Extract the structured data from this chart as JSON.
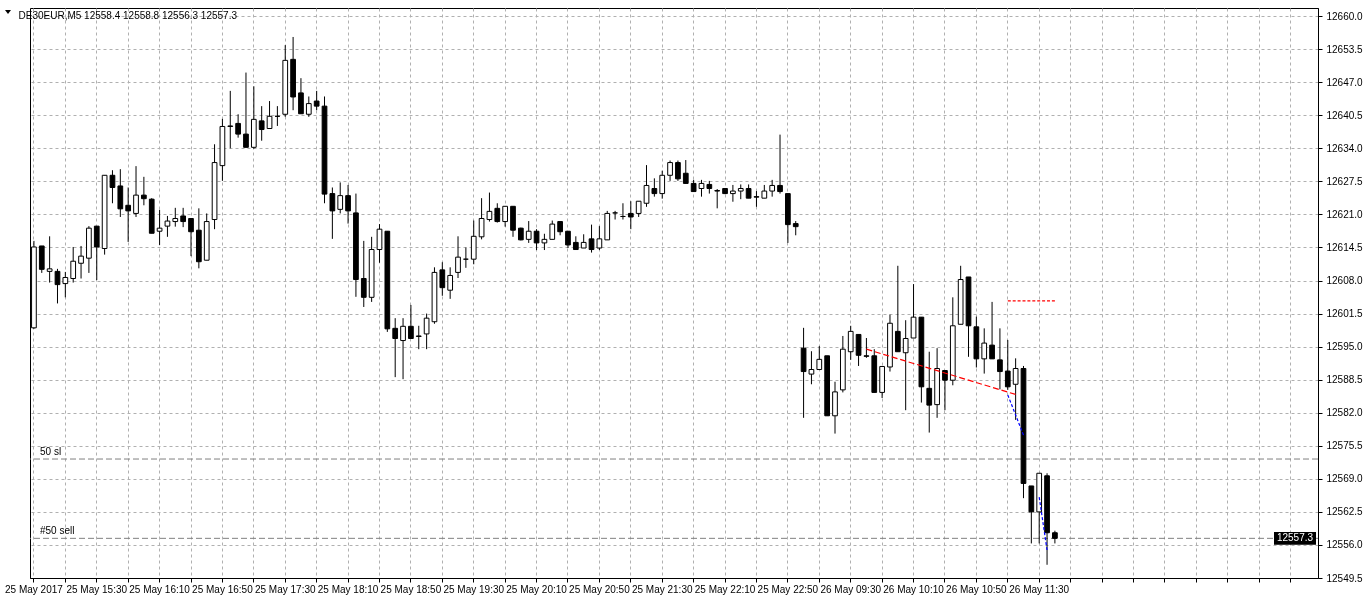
{
  "chart_data": {
    "type": "candlestick",
    "title": "DE30EUR,M5  12558.4 12558.8 12556.3 12557.3",
    "categories": [
      "25 May 2017",
      null,
      null,
      null,
      null,
      null,
      null,
      null,
      "25 May 15:30",
      null,
      null,
      null,
      null,
      null,
      null,
      null,
      "25 May 16:10",
      null,
      null,
      null,
      null,
      null,
      null,
      null,
      "25 May 16:50",
      null,
      null,
      null,
      null,
      null,
      null,
      null,
      "25 May 17:30",
      null,
      null,
      null,
      null,
      null,
      null,
      null,
      "25 May 18:10",
      null,
      null,
      null,
      null,
      null,
      null,
      null,
      "25 May 18:50",
      null,
      null,
      null,
      null,
      null,
      null,
      null,
      "25 May 19:30",
      null,
      null,
      null,
      null,
      null,
      null,
      null,
      "25 May 20:10",
      null,
      null,
      null,
      null,
      null,
      null,
      null,
      "25 May 20:50",
      null,
      null,
      null,
      null,
      null,
      null,
      null,
      "25 May 21:30",
      null,
      null,
      null,
      null,
      null,
      null,
      null,
      "25 May 22:10",
      null,
      null,
      null,
      null,
      null,
      null,
      null,
      "25 May 22:50",
      null,
      null,
      null,
      null,
      null,
      null,
      null,
      "26 May 09:30",
      null,
      null,
      null,
      null,
      null,
      null,
      null,
      "26 May 10:10",
      null,
      null,
      null,
      null,
      null,
      null,
      null,
      "26 May 10:50",
      null,
      null,
      null,
      null,
      null,
      null,
      null,
      "26 May 11:30",
      null,
      null,
      null,
      null,
      null,
      null,
      null,
      null,
      null,
      null,
      null,
      null,
      null,
      null,
      null,
      null,
      null,
      null,
      null,
      null,
      null,
      null,
      null,
      null,
      null,
      null,
      null,
      null,
      null,
      null,
      null,
      null,
      null,
      null,
      null
    ],
    "ohlc": [
      [
        12598.7,
        12615.8,
        12598.5,
        12614.6
      ],
      [
        12614.8,
        12614.8,
        12609.5,
        12610.2
      ],
      [
        12609.8,
        12616.7,
        12607.6,
        12610.3
      ],
      [
        12609.8,
        12610.3,
        12603.5,
        12607.2
      ],
      [
        12607.4,
        12609.7,
        12604.7,
        12608.6
      ],
      [
        12608.4,
        12614.6,
        12607.6,
        12611.8
      ],
      [
        12611.4,
        12614.8,
        12608.4,
        12612.8
      ],
      [
        12612.4,
        12618.7,
        12609.5,
        12618.3
      ],
      [
        12618.7,
        12618.7,
        12608.1,
        12614.6
      ],
      [
        12614.3,
        12628.7,
        12613.1,
        12628.7
      ],
      [
        12628.7,
        12629.7,
        12623.2,
        12626.3
      ],
      [
        12626.6,
        12629.9,
        12620.5,
        12622.1
      ],
      [
        12622.8,
        12626.3,
        12615.6,
        12621.7
      ],
      [
        12621.2,
        12630.5,
        12620.5,
        12624.8
      ],
      [
        12624.8,
        12628.4,
        12622.8,
        12624.1
      ],
      [
        12624.0,
        12624.2,
        12617.3,
        12617.3
      ],
      [
        12617.7,
        12621.9,
        12615.0,
        12618.3
      ],
      [
        12618.7,
        12620.7,
        12616.6,
        12619.7
      ],
      [
        12619.6,
        12622.3,
        12618.6,
        12620.2
      ],
      [
        12620.7,
        12622.3,
        12618.5,
        12619.6
      ],
      [
        12620.2,
        12620.2,
        12612.8,
        12617.6
      ],
      [
        12617.9,
        12622.2,
        12610.4,
        12611.7
      ],
      [
        12612.0,
        12621.2,
        12612.0,
        12619.6
      ],
      [
        12620.0,
        12634.8,
        12618.1,
        12631.2
      ],
      [
        12630.6,
        12639.8,
        12627.6,
        12638.3
      ],
      [
        12638.4,
        12645.3,
        12634.0,
        12638.3
      ],
      [
        12638.9,
        12640.7,
        12636.1,
        12636.8
      ],
      [
        12636.8,
        12648.9,
        12634.2,
        12634.2
      ],
      [
        12634.2,
        12646.2,
        12633.9,
        12639.7
      ],
      [
        12639.4,
        12642.3,
        12635.5,
        12637.7
      ],
      [
        12637.9,
        12643.3,
        12637.9,
        12640.3
      ],
      [
        12640.3,
        12642.3,
        12638.4,
        12640.3
      ],
      [
        12640.7,
        12654.3,
        12640.2,
        12651.3
      ],
      [
        12651.5,
        12655.9,
        12641.5,
        12644.1
      ],
      [
        12644.9,
        12647.8,
        12640.8,
        12640.8
      ],
      [
        12640.7,
        12644.2,
        12640.2,
        12642.8
      ],
      [
        12643.3,
        12645.3,
        12641.5,
        12642.3
      ],
      [
        12642.3,
        12644.2,
        12623.2,
        12625.0
      ],
      [
        12625.1,
        12626.3,
        12616.2,
        12621.7
      ],
      [
        12622.0,
        12627.3,
        12621.2,
        12624.7
      ],
      [
        12624.7,
        12626.8,
        12619.2,
        12621.7
      ],
      [
        12621.3,
        12625.1,
        12604.8,
        12608.2
      ],
      [
        12608.4,
        12615.8,
        12602.8,
        12604.7
      ],
      [
        12604.7,
        12616.6,
        12603.8,
        12614.1
      ],
      [
        12614.1,
        12619.1,
        12611.5,
        12618.1
      ],
      [
        12617.7,
        12617.7,
        12597.9,
        12598.5
      ],
      [
        12598.6,
        12600.6,
        12589.0,
        12596.6
      ],
      [
        12596.2,
        12600.6,
        12588.6,
        12599.0
      ],
      [
        12599.0,
        12603.2,
        12596.6,
        12596.6
      ],
      [
        12597.1,
        12599.1,
        12594.5,
        12597.0
      ],
      [
        12597.5,
        12601.5,
        12594.5,
        12600.6
      ],
      [
        12599.9,
        12610.6,
        12599.5,
        12609.6
      ],
      [
        12610.1,
        12611.6,
        12605.0,
        12606.6
      ],
      [
        12606.1,
        12610.6,
        12604.4,
        12609.0
      ],
      [
        12609.6,
        12616.7,
        12608.5,
        12612.6
      ],
      [
        12612.2,
        12614.5,
        12610.5,
        12612.2
      ],
      [
        12612.2,
        12619.8,
        12611.2,
        12616.7
      ],
      [
        12616.6,
        12624.2,
        12616.1,
        12620.2
      ],
      [
        12620.0,
        12625.3,
        12619.6,
        12621.6
      ],
      [
        12622.2,
        12623.2,
        12619.4,
        12619.6
      ],
      [
        12619.6,
        12622.6,
        12618.6,
        12622.6
      ],
      [
        12622.6,
        12622.6,
        12616.6,
        12617.9
      ],
      [
        12618.3,
        12618.4,
        12615.9,
        12616.0
      ],
      [
        12616.1,
        12619.7,
        12615.4,
        12617.7
      ],
      [
        12617.7,
        12618.1,
        12614.0,
        12615.4
      ],
      [
        12615.4,
        12617.2,
        12614.0,
        12616.1
      ],
      [
        12616.1,
        12619.8,
        12616.1,
        12619.1
      ],
      [
        12619.6,
        12619.6,
        12616.9,
        12617.6
      ],
      [
        12617.7,
        12617.7,
        12614.4,
        12615.0
      ],
      [
        12615.5,
        12616.7,
        12614.1,
        12614.1
      ],
      [
        12614.4,
        12617.1,
        12614.4,
        12615.5
      ],
      [
        12616.2,
        12619.0,
        12613.5,
        12614.1
      ],
      [
        12614.4,
        12618.7,
        12614.0,
        12616.2
      ],
      [
        12616.0,
        12621.7,
        12616.0,
        12621.2
      ],
      [
        12621.3,
        12621.7,
        12620.0,
        12621.3
      ],
      [
        12620.6,
        12623.2,
        12620.0,
        12620.6
      ],
      [
        12621.2,
        12623.6,
        12618.1,
        12620.5
      ],
      [
        12621.2,
        12623.6,
        12620.5,
        12623.6
      ],
      [
        12623.2,
        12630.7,
        12622.5,
        12626.7
      ],
      [
        12626.1,
        12628.1,
        12624.5,
        12625.1
      ],
      [
        12625.1,
        12629.6,
        12624.1,
        12628.7
      ],
      [
        12628.7,
        12631.6,
        12627.6,
        12631.2
      ],
      [
        12631.2,
        12631.6,
        12627.6,
        12628.0
      ],
      [
        12629.1,
        12631.7,
        12627.1,
        12627.1
      ],
      [
        12627.1,
        12627.8,
        12625.5,
        12625.5
      ],
      [
        12626.1,
        12627.8,
        12624.5,
        12627.1
      ],
      [
        12626.9,
        12627.6,
        12625.1,
        12626.1
      ],
      [
        12625.7,
        12626.0,
        12622.2,
        12625.6
      ],
      [
        12626.1,
        12626.1,
        12625.0,
        12625.1
      ],
      [
        12625.1,
        12626.8,
        12623.5,
        12625.6
      ],
      [
        12625.6,
        12626.9,
        12624.0,
        12626.1
      ],
      [
        12626.1,
        12626.9,
        12624.2,
        12624.2
      ],
      [
        12624.5,
        12625.6,
        12622.5,
        12624.4
      ],
      [
        12624.2,
        12626.8,
        12624.2,
        12625.6
      ],
      [
        12625.6,
        12627.8,
        12624.5,
        12626.7
      ],
      [
        12626.7,
        12636.7,
        12625.1,
        12625.5
      ],
      [
        12625.1,
        12625.1,
        12615.4,
        12619.0
      ],
      [
        12619.2,
        12619.7,
        12616.9,
        12618.6
      ],
      [
        12594.7,
        12598.7,
        12581.0,
        12590.1
      ],
      [
        12589.6,
        12594.1,
        12587.6,
        12590.5
      ],
      [
        12590.5,
        12595.1,
        12590.5,
        12592.5
      ],
      [
        12593.2,
        12593.2,
        12581.4,
        12581.4
      ],
      [
        12581.4,
        12588.1,
        12577.9,
        12586.1
      ],
      [
        12586.5,
        12597.1,
        12586.0,
        12594.5
      ],
      [
        12594.0,
        12599.1,
        12592.4,
        12598.0
      ],
      [
        12597.4,
        12597.4,
        12591.2,
        12593.3
      ],
      [
        12593.2,
        12596.7,
        12592.8,
        12593.1
      ],
      [
        12593.2,
        12594.5,
        12586.0,
        12586.0
      ],
      [
        12586.0,
        12591.1,
        12584.9,
        12591.1
      ],
      [
        12591.0,
        12601.3,
        12590.1,
        12599.6
      ],
      [
        12598.0,
        12610.9,
        12594.0,
        12594.0
      ],
      [
        12593.8,
        12600.2,
        12582.5,
        12596.6
      ],
      [
        12596.7,
        12607.3,
        12596.7,
        12600.8
      ],
      [
        12600.8,
        12600.8,
        12584.0,
        12587.1
      ],
      [
        12586.8,
        12594.0,
        12578.1,
        12583.5
      ],
      [
        12583.6,
        12594.7,
        12581.0,
        12590.7
      ],
      [
        12590.3,
        12590.3,
        12582.5,
        12588.4
      ],
      [
        12588.4,
        12604.7,
        12587.4,
        12599.1
      ],
      [
        12599.4,
        12610.9,
        12599.4,
        12608.2
      ],
      [
        12608.7,
        12608.7,
        12593.0,
        12599.1
      ],
      [
        12598.9,
        12600.9,
        12590.9,
        12592.6
      ],
      [
        12592.6,
        12598.6,
        12589.7,
        12595.7
      ],
      [
        12595.3,
        12603.8,
        12592.6,
        12592.6
      ],
      [
        12592.4,
        12598.6,
        12586.6,
        12590.1
      ],
      [
        12590.2,
        12596.3,
        12586.5,
        12587.1
      ],
      [
        12587.6,
        12592.7,
        12580.6,
        12590.7
      ],
      [
        12590.7,
        12591.2,
        12565.2,
        12568.1
      ],
      [
        12567.6,
        12567.6,
        12556.3,
        12562.5
      ],
      [
        12562.5,
        12570.1,
        12556.3,
        12570.1
      ],
      [
        12569.6,
        12570.1,
        12552.1,
        12558.4
      ],
      [
        12558.4,
        12558.8,
        12556.3,
        12557.3
      ],
      null,
      null,
      null,
      null,
      null,
      null,
      null,
      null,
      null,
      null,
      null,
      null,
      null,
      null,
      null,
      null,
      null,
      null,
      null,
      null,
      null,
      null,
      null,
      null,
      null,
      null,
      null,
      null,
      null,
      null,
      null,
      null,
      null
    ],
    "series": [
      {
        "type": "line",
        "color": "#ff0000",
        "line_style": "dashed",
        "values": [
          null,
          null,
          null,
          null,
          null,
          null,
          null,
          null,
          null,
          null,
          null,
          null,
          null,
          null,
          null,
          null,
          null,
          null,
          null,
          null,
          null,
          null,
          null,
          null,
          null,
          null,
          null,
          null,
          null,
          null,
          null,
          null,
          null,
          null,
          null,
          null,
          null,
          null,
          null,
          null,
          null,
          null,
          null,
          null,
          null,
          null,
          null,
          null,
          null,
          null,
          null,
          null,
          null,
          null,
          null,
          null,
          null,
          null,
          null,
          null,
          null,
          null,
          null,
          null,
          null,
          null,
          null,
          null,
          null,
          null,
          null,
          null,
          null,
          null,
          null,
          null,
          null,
          null,
          null,
          null,
          null,
          null,
          null,
          null,
          null,
          null,
          null,
          null,
          null,
          null,
          null,
          null,
          null,
          null,
          null,
          null,
          null,
          null,
          null,
          null,
          null,
          null,
          null,
          null,
          null,
          null,
          12594.5,
          null,
          null,
          null,
          null,
          null,
          null,
          null,
          null,
          null,
          null,
          null,
          null,
          null,
          null,
          null,
          null,
          null,
          null,
          12585.6,
          null,
          null,
          null,
          null,
          null,
          null,
          null,
          null,
          null,
          null,
          null,
          null,
          null,
          null,
          null,
          null,
          null,
          null,
          null,
          null,
          null,
          null,
          null,
          null,
          null,
          null,
          null,
          null,
          null,
          null,
          null,
          null,
          null,
          null,
          null,
          null,
          null,
          null
        ]
      },
      {
        "type": "line",
        "color": "#ff0000",
        "line_style": "dotted",
        "values": [
          null,
          null,
          null,
          null,
          null,
          null,
          null,
          null,
          null,
          null,
          null,
          null,
          null,
          null,
          null,
          null,
          null,
          null,
          null,
          null,
          null,
          null,
          null,
          null,
          null,
          null,
          null,
          null,
          null,
          null,
          null,
          null,
          null,
          null,
          null,
          null,
          null,
          null,
          null,
          null,
          null,
          null,
          null,
          null,
          null,
          null,
          null,
          null,
          null,
          null,
          null,
          null,
          null,
          null,
          null,
          null,
          null,
          null,
          null,
          null,
          null,
          null,
          null,
          null,
          null,
          null,
          null,
          null,
          null,
          null,
          null,
          null,
          null,
          null,
          null,
          null,
          null,
          null,
          null,
          null,
          null,
          null,
          null,
          null,
          null,
          null,
          null,
          null,
          null,
          null,
          null,
          null,
          null,
          null,
          null,
          null,
          null,
          null,
          null,
          null,
          null,
          null,
          null,
          null,
          null,
          null,
          null,
          null,
          null,
          null,
          null,
          null,
          null,
          null,
          null,
          null,
          null,
          null,
          null,
          null,
          null,
          null,
          null,
          null,
          12604.0,
          null,
          null,
          null,
          null,
          null,
          12604.0,
          null,
          null,
          null,
          null,
          null,
          null,
          null,
          null,
          null,
          null,
          null,
          null,
          null,
          null,
          null,
          null,
          null,
          null,
          null,
          null,
          null,
          null,
          null,
          null,
          null,
          null,
          null,
          null,
          null,
          null,
          null,
          null,
          null
        ]
      },
      {
        "type": "line",
        "color": "#0000ff",
        "line_style": "dotted",
        "values": [
          null,
          null,
          null,
          null,
          null,
          null,
          null,
          null,
          null,
          null,
          null,
          null,
          null,
          null,
          null,
          null,
          null,
          null,
          null,
          null,
          null,
          null,
          null,
          null,
          null,
          null,
          null,
          null,
          null,
          null,
          null,
          null,
          null,
          null,
          null,
          null,
          null,
          null,
          null,
          null,
          null,
          null,
          null,
          null,
          null,
          null,
          null,
          null,
          null,
          null,
          null,
          null,
          null,
          null,
          null,
          null,
          null,
          null,
          null,
          null,
          null,
          null,
          null,
          null,
          null,
          null,
          null,
          null,
          null,
          null,
          null,
          null,
          null,
          null,
          null,
          null,
          null,
          null,
          null,
          null,
          null,
          null,
          null,
          null,
          null,
          null,
          null,
          null,
          null,
          null,
          null,
          null,
          null,
          null,
          null,
          null,
          null,
          null,
          null,
          null,
          null,
          null,
          null,
          null,
          null,
          null,
          null,
          null,
          null,
          null,
          null,
          null,
          null,
          null,
          null,
          null,
          null,
          null,
          null,
          null,
          null,
          null,
          null,
          null,
          12585.5,
          null,
          12577.6,
          null,
          null,
          null,
          null,
          null,
          null,
          null,
          null,
          null,
          null,
          null,
          null,
          null,
          null,
          null,
          null,
          null,
          null,
          null,
          null,
          null,
          null,
          null,
          null,
          null,
          null,
          null,
          null,
          null,
          null,
          null,
          null,
          null,
          null,
          null,
          null,
          null
        ]
      },
      {
        "type": "line",
        "color": "#0000ff",
        "line_style": "dotted",
        "values": [
          null,
          null,
          null,
          null,
          null,
          null,
          null,
          null,
          null,
          null,
          null,
          null,
          null,
          null,
          null,
          null,
          null,
          null,
          null,
          null,
          null,
          null,
          null,
          null,
          null,
          null,
          null,
          null,
          null,
          null,
          null,
          null,
          null,
          null,
          null,
          null,
          null,
          null,
          null,
          null,
          null,
          null,
          null,
          null,
          null,
          null,
          null,
          null,
          null,
          null,
          null,
          null,
          null,
          null,
          null,
          null,
          null,
          null,
          null,
          null,
          null,
          null,
          null,
          null,
          null,
          null,
          null,
          null,
          null,
          null,
          null,
          null,
          null,
          null,
          null,
          null,
          null,
          null,
          null,
          null,
          null,
          null,
          null,
          null,
          null,
          null,
          null,
          null,
          null,
          null,
          null,
          null,
          null,
          null,
          null,
          null,
          null,
          null,
          null,
          null,
          null,
          null,
          null,
          null,
          null,
          null,
          null,
          null,
          null,
          null,
          null,
          null,
          null,
          null,
          null,
          null,
          null,
          null,
          null,
          null,
          null,
          null,
          null,
          null,
          null,
          null,
          null,
          null,
          12565.4,
          12555.0,
          null,
          null,
          null,
          null,
          null,
          null,
          null,
          null,
          null,
          null,
          null,
          null,
          null,
          null,
          null,
          null,
          null,
          null,
          null,
          null,
          null,
          null,
          null,
          null,
          null,
          null,
          null,
          null,
          null,
          null,
          null,
          null,
          null,
          null
        ]
      }
    ],
    "ylim": [
      12549.5,
      12661.6
    ],
    "yticks": [
      12549.5,
      {
        "value": 12556,
        "label": "12556.0"
      },
      12562.5,
      {
        "value": 12569,
        "label": "12569.0"
      },
      12575.5,
      {
        "value": 12582,
        "label": "12582.0"
      },
      12588.5,
      {
        "value": 12595,
        "label": "12595.0"
      },
      12601.5,
      {
        "value": 12608,
        "label": "12608.0"
      },
      12614.5,
      {
        "value": 12621,
        "label": "12621.0"
      },
      12627.5,
      {
        "value": 12634,
        "label": "12634.0"
      },
      12640.5,
      {
        "value": 12647,
        "label": "12647.0"
      },
      12653.5,
      {
        "value": 12660,
        "label": "12660.0"
      }
    ],
    "grid": true,
    "ref_lines": [
      {
        "axis": "y",
        "value": 12572.9,
        "label": "50 sl",
        "color": "#808080",
        "line_style": "dashed"
      },
      {
        "axis": "y",
        "value": 12557.3,
        "label": "#50 sell",
        "color": "#808080",
        "line_style": "dashed"
      }
    ],
    "annotations": [
      "12557.3"
    ]
  }
}
